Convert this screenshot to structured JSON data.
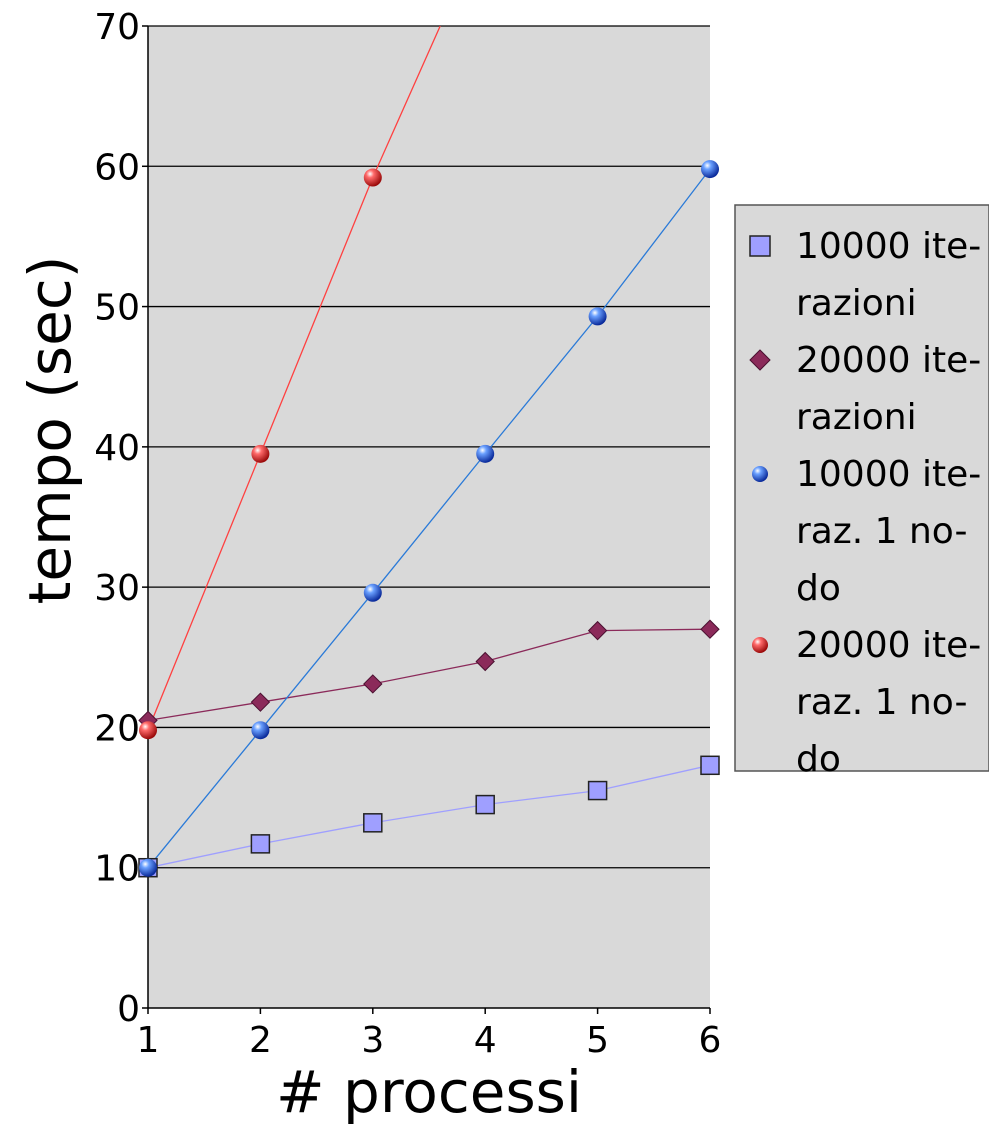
{
  "chart_data": {
    "type": "line",
    "xlabel": "# processi",
    "ylabel": "tempo (sec)",
    "xlim": [
      1,
      6
    ],
    "ylim": [
      0,
      70
    ],
    "x_ticks": [
      1,
      2,
      3,
      4,
      5,
      6
    ],
    "y_ticks": [
      0,
      10,
      20,
      30,
      40,
      50,
      60,
      70
    ],
    "grid": "horizontal",
    "legend_position": "right",
    "plot_background": "#d9d9d9",
    "series": [
      {
        "name": "10000 iterazioni",
        "legend_lines": [
          "10000 ite-",
          "razioni"
        ],
        "marker": "square",
        "color": "#9f9fff",
        "line_color": "#9f9fff",
        "x": [
          1,
          2,
          3,
          4,
          5,
          6
        ],
        "values": [
          10,
          11.7,
          13.2,
          14.5,
          15.5,
          17.3
        ]
      },
      {
        "name": "20000 iterazioni",
        "legend_lines": [
          "20000 ite-",
          "razioni"
        ],
        "marker": "diamond",
        "color": "#8b2a5a",
        "line_color": "#8b2a5a",
        "x": [
          1,
          2,
          3,
          4,
          5,
          6
        ],
        "values": [
          20.5,
          21.8,
          23.1,
          24.7,
          26.9,
          27
        ]
      },
      {
        "name": "10000 iteraz. 1 nodo",
        "legend_lines": [
          "10000 ite-",
          "raz. 1 no-",
          "do"
        ],
        "marker": "sphere",
        "color": "#1f5fd8",
        "line_color": "#2a7ad8",
        "x": [
          1,
          2,
          3,
          4,
          5,
          6
        ],
        "values": [
          10,
          19.8,
          29.6,
          39.5,
          49.3,
          59.8
        ]
      },
      {
        "name": "20000 iteraz. 1 nodo",
        "legend_lines": [
          "20000 ite-",
          "raz. 1 no-",
          "do"
        ],
        "marker": "sphere",
        "color": "#e02020",
        "line_color": "#ff4040",
        "x": [
          1,
          2,
          3
        ],
        "values": [
          19.8,
          39.5,
          59.2
        ],
        "extends_to": [
          3.6,
          70
        ]
      }
    ]
  }
}
